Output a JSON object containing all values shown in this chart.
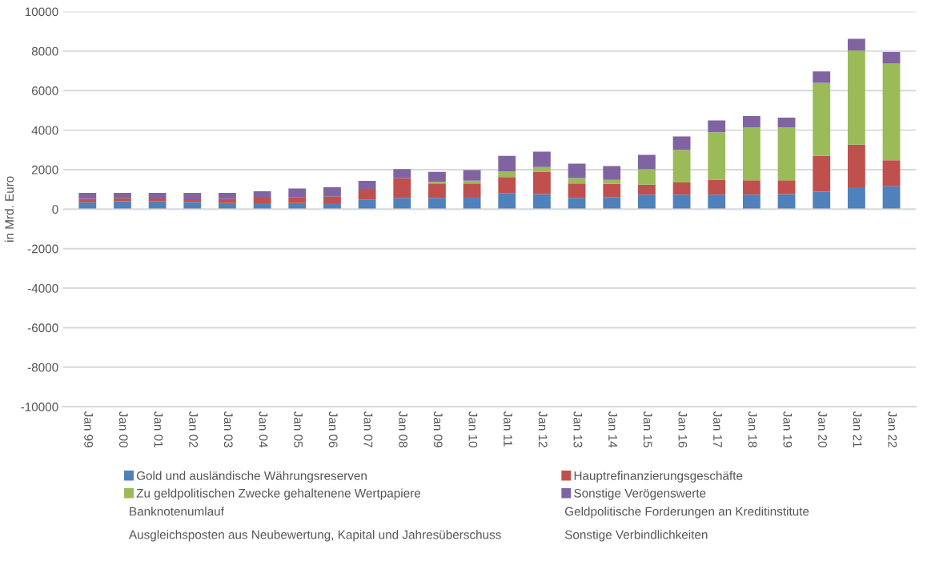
{
  "chart_data": {
    "type": "bar",
    "stacked": true,
    "ylabel": "in Mrd. Euro",
    "categories": [
      "Jan 99",
      "Jan 00",
      "Jan 01",
      "Jan 02",
      "Jan 03",
      "Jan 04",
      "Jan 05",
      "Jan 06",
      "Jan 07",
      "Jan 08",
      "Jan 09",
      "Jan 10",
      "Jan 11",
      "Jan 12",
      "Jan 13",
      "Jan 14",
      "Jan 15",
      "Jan 16",
      "Jan 17",
      "Jan 18",
      "Jan 19",
      "Jan 20",
      "Jan 21",
      "Jan 22"
    ],
    "series": [
      {
        "name": "Gold und ausländische Währungsreserven",
        "color": "#4f81bd",
        "values": [
          350,
          400,
          390,
          370,
          310,
          300,
          310,
          300,
          490,
          570,
          570,
          620,
          810,
          760,
          570,
          600,
          730,
          730,
          730,
          730,
          760,
          890,
          1110,
          1160
        ]
      },
      {
        "name": "Hauptrefinanzierungsgeschäfte",
        "color": "#c0504d",
        "values": [
          170,
          150,
          150,
          130,
          200,
          280,
          300,
          330,
          540,
          1000,
          730,
          680,
          810,
          1130,
          730,
          680,
          510,
          620,
          760,
          730,
          700,
          1810,
          2160,
          1320
        ]
      },
      {
        "name": "Zu geldpolitischen Zwecke gehaltenene Wertpapiere",
        "color": "#9bbb59",
        "values": [
          0,
          0,
          0,
          0,
          0,
          0,
          0,
          0,
          0,
          0,
          80,
          140,
          300,
          240,
          270,
          200,
          780,
          1650,
          2400,
          2680,
          2680,
          3700,
          4760,
          4890
        ]
      },
      {
        "name": "Sonstige Verögenswerte",
        "color": "#8064a2",
        "values": [
          300,
          270,
          280,
          320,
          310,
          330,
          440,
          480,
          400,
          460,
          510,
          540,
          780,
          780,
          730,
          700,
          730,
          680,
          600,
          570,
          490,
          570,
          590,
          590
        ]
      }
    ],
    "ylim": [
      -10000,
      10000
    ],
    "yticks": [
      -10000,
      -8000,
      -6000,
      -4000,
      -2000,
      0,
      2000,
      4000,
      6000,
      8000,
      10000
    ],
    "grid": "y",
    "legend": "bottom",
    "annotations": [
      "Banknotenumlauf",
      "Geldpolitische Forderungen an Kreditinstitute",
      "Ausgleichsposten aus Neubewertung, Kapital und Jahresüberschuss",
      "Sonstige Verbindlichkeiten"
    ]
  }
}
